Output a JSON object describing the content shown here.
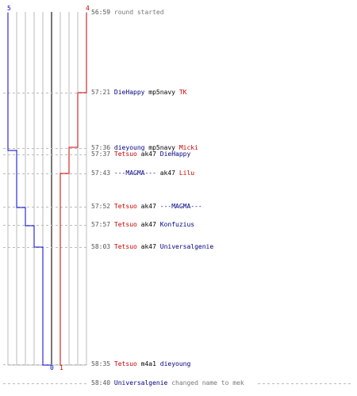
{
  "score": {
    "blue_start": "5",
    "red_start": "4",
    "blue_end": "0",
    "red_end": "1"
  },
  "colors": {
    "blue_team": "#0000cc",
    "red_team": "#cc0000",
    "grid": "#bbbbbb",
    "center_line": "#777777",
    "dashed": "#bbbbbb"
  },
  "events": [
    {
      "time": "56:59",
      "parts": [
        {
          "text": "round started",
          "style": "grey"
        }
      ]
    },
    {
      "time": "57:21",
      "parts": [
        {
          "text": "DieHappy",
          "style": "blue"
        },
        {
          "text": "mp5navy",
          "style": "dark"
        },
        {
          "text": "TK",
          "style": "red"
        }
      ]
    },
    {
      "time": "57:36",
      "parts": [
        {
          "text": "dieyoung",
          "style": "blue"
        },
        {
          "text": "mp5navy",
          "style": "dark"
        },
        {
          "text": "Micki",
          "style": "red"
        }
      ]
    },
    {
      "time": "57:37",
      "parts": [
        {
          "text": "Tetsuo",
          "style": "red"
        },
        {
          "text": "ak47",
          "style": "dark"
        },
        {
          "text": "DieHappy",
          "style": "blue"
        }
      ]
    },
    {
      "time": "57:43",
      "parts": [
        {
          "text": "---MAGMA---",
          "style": "blue"
        },
        {
          "text": "ak47",
          "style": "dark"
        },
        {
          "text": "Lilu",
          "style": "red"
        }
      ]
    },
    {
      "time": "57:52",
      "parts": [
        {
          "text": "Tetsuo",
          "style": "red"
        },
        {
          "text": "ak47",
          "style": "dark"
        },
        {
          "text": "---MAGMA---",
          "style": "blue"
        }
      ]
    },
    {
      "time": "57:57",
      "parts": [
        {
          "text": "Tetsuo",
          "style": "red"
        },
        {
          "text": "ak47",
          "style": "dark"
        },
        {
          "text": "Konfuzius",
          "style": "blue"
        }
      ]
    },
    {
      "time": "58:03",
      "parts": [
        {
          "text": "Tetsuo",
          "style": "red"
        },
        {
          "text": "ak47",
          "style": "dark"
        },
        {
          "text": "Universalgenie",
          "style": "blue"
        }
      ]
    },
    {
      "time": "58:35",
      "parts": [
        {
          "text": "Tetsuo",
          "style": "red"
        },
        {
          "text": "m4a1",
          "style": "dark"
        },
        {
          "text": "dieyoung",
          "style": "blue"
        }
      ]
    },
    {
      "time": "58:40",
      "parts": [
        {
          "text": "Universalgenie",
          "style": "blue"
        },
        {
          "text": "changed name to mek",
          "style": "grey"
        }
      ]
    }
  ]
}
